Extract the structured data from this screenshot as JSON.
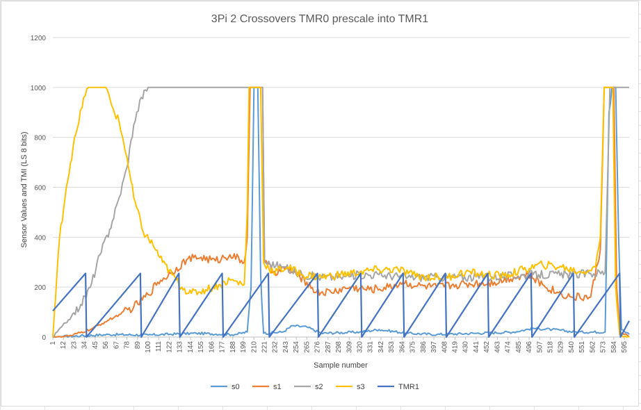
{
  "chart_data": {
    "type": "line",
    "title": "3Pi  2 Crossovers TMR0 prescale into TMR1",
    "xlabel": "Sample number",
    "ylabel": "Sensor Values and TMI (LS 8 bits)",
    "ylim": [
      0,
      1200
    ],
    "yticks": [
      0,
      200,
      400,
      600,
      800,
      1000,
      1200
    ],
    "xlim": [
      1,
      600
    ],
    "xtick_labels": [
      "1",
      "12",
      "23",
      "34",
      "45",
      "56",
      "67",
      "78",
      "89",
      "100",
      "111",
      "122",
      "133",
      "144",
      "155",
      "166",
      "177",
      "188",
      "199",
      "210",
      "221",
      "232",
      "243",
      "254",
      "265",
      "276",
      "287",
      "298",
      "309",
      "320",
      "331",
      "342",
      "353",
      "364",
      "375",
      "386",
      "397",
      "408",
      "419",
      "430",
      "441",
      "452",
      "463",
      "474",
      "485",
      "496",
      "507",
      "518",
      "529",
      "540",
      "551",
      "562",
      "573",
      "584",
      "595"
    ],
    "grid": "horizontal",
    "legend": "bottom",
    "series": [
      {
        "name": "s0",
        "color": "#5b9bd5",
        "points": [
          [
            1,
            0
          ],
          [
            30,
            5
          ],
          [
            60,
            10
          ],
          [
            100,
            8
          ],
          [
            150,
            15
          ],
          [
            190,
            10
          ],
          [
            203,
            20
          ],
          [
            207,
            200
          ],
          [
            210,
            1000
          ],
          [
            214,
            1000
          ],
          [
            217,
            250
          ],
          [
            220,
            15
          ],
          [
            240,
            20
          ],
          [
            250,
            45
          ],
          [
            265,
            40
          ],
          [
            280,
            15
          ],
          [
            320,
            20
          ],
          [
            340,
            30
          ],
          [
            370,
            15
          ],
          [
            400,
            10
          ],
          [
            440,
            15
          ],
          [
            480,
            20
          ],
          [
            500,
            35
          ],
          [
            520,
            30
          ],
          [
            545,
            20
          ],
          [
            575,
            20
          ],
          [
            579,
            900
          ],
          [
            582,
            1000
          ],
          [
            586,
            1000
          ],
          [
            589,
            400
          ],
          [
            592,
            30
          ],
          [
            600,
            10
          ]
        ]
      },
      {
        "name": "s1",
        "color": "#ed7d31",
        "points": [
          [
            1,
            0
          ],
          [
            20,
            5
          ],
          [
            40,
            30
          ],
          [
            55,
            60
          ],
          [
            70,
            90
          ],
          [
            85,
            120
          ],
          [
            100,
            170
          ],
          [
            110,
            220
          ],
          [
            125,
            260
          ],
          [
            140,
            310
          ],
          [
            155,
            320
          ],
          [
            170,
            305
          ],
          [
            185,
            330
          ],
          [
            200,
            300
          ],
          [
            203,
            400
          ],
          [
            206,
            1000
          ],
          [
            219,
            1000
          ],
          [
            221,
            300
          ],
          [
            230,
            260
          ],
          [
            245,
            275
          ],
          [
            255,
            250
          ],
          [
            265,
            220
          ],
          [
            275,
            180
          ],
          [
            290,
            180
          ],
          [
            310,
            200
          ],
          [
            330,
            190
          ],
          [
            350,
            200
          ],
          [
            365,
            220
          ],
          [
            380,
            205
          ],
          [
            400,
            200
          ],
          [
            420,
            210
          ],
          [
            440,
            215
          ],
          [
            460,
            220
          ],
          [
            480,
            240
          ],
          [
            495,
            250
          ],
          [
            510,
            210
          ],
          [
            525,
            180
          ],
          [
            540,
            160
          ],
          [
            560,
            160
          ],
          [
            570,
            350
          ],
          [
            574,
            1000
          ],
          [
            584,
            1000
          ],
          [
            587,
            200
          ],
          [
            590,
            20
          ],
          [
            600,
            0
          ]
        ]
      },
      {
        "name": "s2",
        "color": "#a5a5a5",
        "points": [
          [
            1,
            0
          ],
          [
            10,
            40
          ],
          [
            20,
            80
          ],
          [
            30,
            130
          ],
          [
            40,
            200
          ],
          [
            50,
            330
          ],
          [
            60,
            430
          ],
          [
            70,
            560
          ],
          [
            78,
            680
          ],
          [
            85,
            850
          ],
          [
            93,
            960
          ],
          [
            100,
            1000
          ],
          [
            150,
            1000
          ],
          [
            210,
            1000
          ],
          [
            219,
            1000
          ],
          [
            221,
            300
          ],
          [
            240,
            280
          ],
          [
            260,
            250
          ],
          [
            280,
            240
          ],
          [
            300,
            240
          ],
          [
            320,
            250
          ],
          [
            340,
            250
          ],
          [
            370,
            240
          ],
          [
            400,
            240
          ],
          [
            450,
            240
          ],
          [
            500,
            250
          ],
          [
            540,
            250
          ],
          [
            560,
            255
          ],
          [
            575,
            260
          ],
          [
            580,
            1000
          ],
          [
            600,
            1000
          ]
        ]
      },
      {
        "name": "s3",
        "color": "#ffc000",
        "points": [
          [
            1,
            0
          ],
          [
            8,
            400
          ],
          [
            15,
            600
          ],
          [
            22,
            760
          ],
          [
            28,
            860
          ],
          [
            33,
            960
          ],
          [
            38,
            1000
          ],
          [
            56,
            1000
          ],
          [
            62,
            930
          ],
          [
            70,
            860
          ],
          [
            78,
            720
          ],
          [
            85,
            560
          ],
          [
            95,
            420
          ],
          [
            105,
            370
          ],
          [
            115,
            300
          ],
          [
            125,
            250
          ],
          [
            135,
            200
          ],
          [
            145,
            175
          ],
          [
            160,
            190
          ],
          [
            175,
            210
          ],
          [
            185,
            230
          ],
          [
            200,
            210
          ],
          [
            203,
            500
          ],
          [
            205,
            1000
          ],
          [
            217,
            1000
          ],
          [
            220,
            300
          ],
          [
            230,
            260
          ],
          [
            245,
            280
          ],
          [
            260,
            250
          ],
          [
            280,
            240
          ],
          [
            300,
            250
          ],
          [
            320,
            260
          ],
          [
            340,
            270
          ],
          [
            360,
            270
          ],
          [
            375,
            250
          ],
          [
            390,
            240
          ],
          [
            410,
            240
          ],
          [
            430,
            260
          ],
          [
            450,
            250
          ],
          [
            470,
            245
          ],
          [
            490,
            270
          ],
          [
            510,
            290
          ],
          [
            530,
            280
          ],
          [
            550,
            260
          ],
          [
            565,
            280
          ],
          [
            570,
            400
          ],
          [
            574,
            1000
          ],
          [
            583,
            1000
          ],
          [
            586,
            200
          ],
          [
            590,
            10
          ],
          [
            600,
            0
          ]
        ]
      },
      {
        "name": "TMR1",
        "color": "#4472c4",
        "points": [
          [
            1,
            105
          ],
          [
            35,
            255
          ],
          [
            36,
            0
          ],
          [
            92,
            255
          ],
          [
            93,
            0
          ],
          [
            132,
            255
          ],
          [
            133,
            0
          ],
          [
            177,
            255
          ],
          [
            178,
            0
          ],
          [
            225,
            255
          ],
          [
            226,
            0
          ],
          [
            276,
            255
          ],
          [
            277,
            0
          ],
          [
            321,
            255
          ],
          [
            322,
            0
          ],
          [
            365,
            255
          ],
          [
            366,
            0
          ],
          [
            409,
            255
          ],
          [
            410,
            0
          ],
          [
            453,
            255
          ],
          [
            454,
            0
          ],
          [
            498,
            255
          ],
          [
            499,
            0
          ],
          [
            542,
            255
          ],
          [
            543,
            0
          ],
          [
            590,
            255
          ],
          [
            591,
            0
          ],
          [
            600,
            65
          ]
        ]
      }
    ]
  }
}
